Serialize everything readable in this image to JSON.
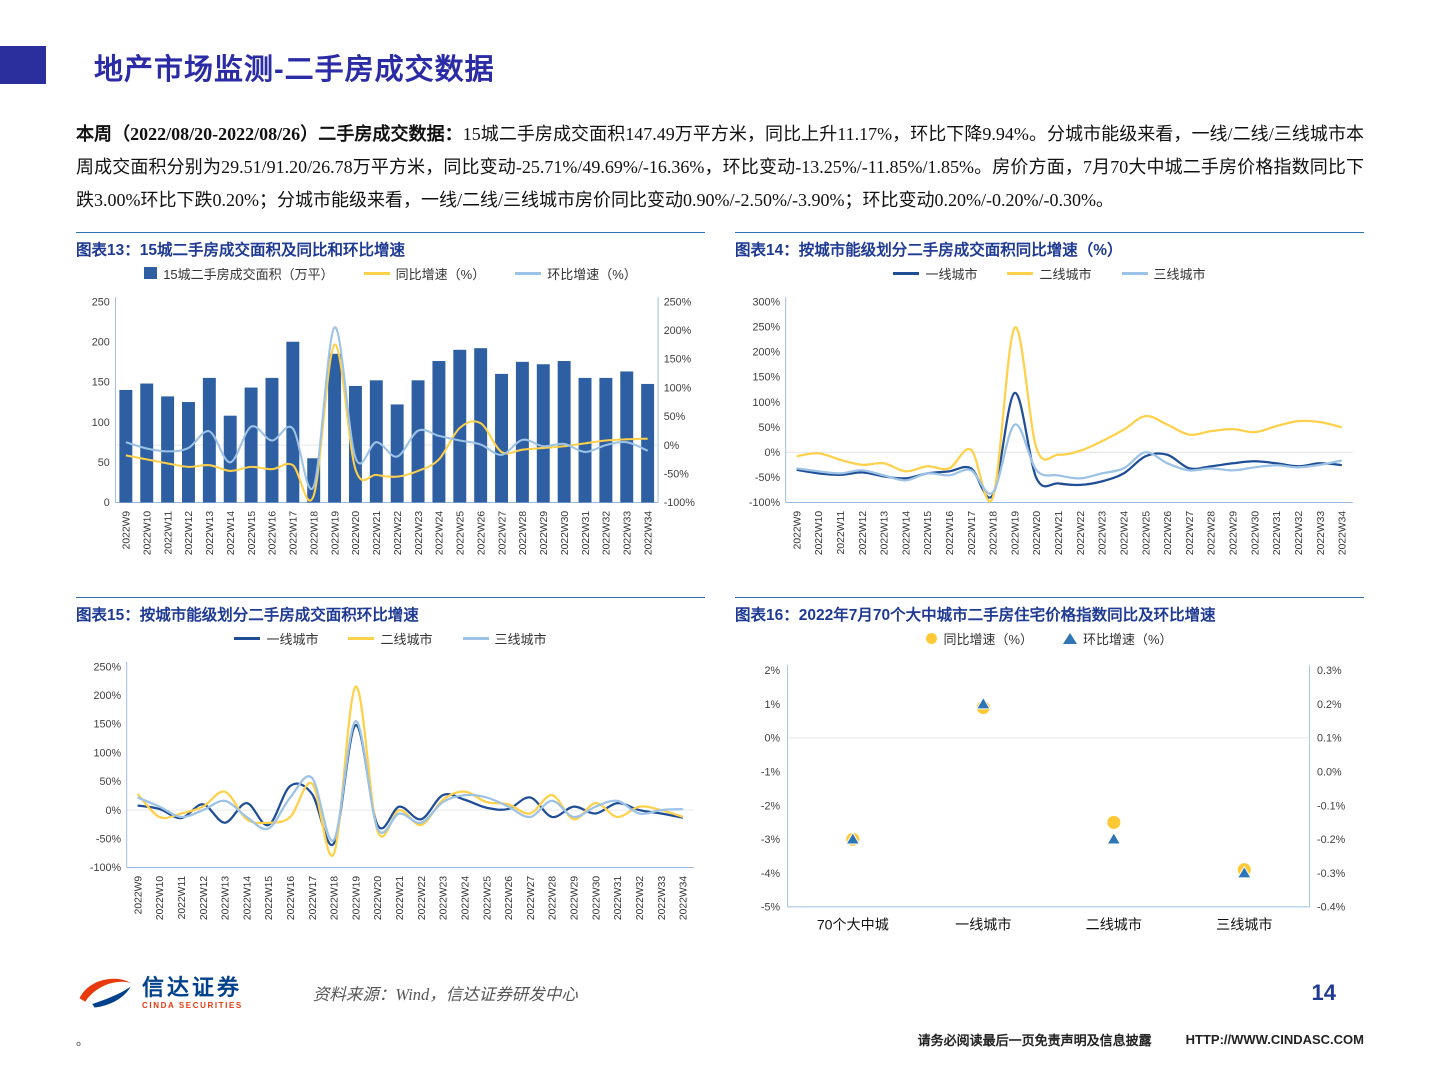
{
  "page": {
    "title": "地产市场监测-二手房成交数据",
    "paragraph_bold": "本周（2022/08/20-2022/08/26）二手房成交数据：",
    "paragraph_text": "15城二手房成交面积147.49万平方米，同比上升11.17%，环比下降9.94%。分城市能级来看，一线/二线/三线城市本周成交面积分别为29.51/91.20/26.78万平方米，同比变动-25.71%/49.69%/-16.36%，环比变动-13.25%/-11.85%/1.85%。房价方面，7月70大中城二手房价格指数同比下跌3.00%环比下跌0.20%；分城市能级来看，一线/二线/三线城市房价同比变动0.90%/-2.50%/-3.90%；环比变动0.20%/-0.20%/-0.30%。",
    "page_number": "14",
    "footer_source": "资料来源：Wind，信达证券研发中心",
    "footer_disclaimer": "请务必阅读最后一页免责声明及信息披露",
    "footer_url": "HTTP://WWW.CINDASC.COM",
    "footer_period": "。",
    "logo": {
      "name": "信达证券",
      "sub": "CINDA SECURITIES"
    }
  },
  "colors": {
    "accent_square": "#2B2F9E",
    "page_title": "#2B2BA6",
    "chart_title": "#1F3A93",
    "rule_line": "#2E74B5",
    "bar_blue": "#2E5FA3",
    "line_navy": "#1F4E96",
    "line_yellow": "#FFD04A",
    "line_lightblue": "#9CC2E5",
    "dot_yellow": "#FFC936",
    "triangle_blue": "#2E75B6",
    "logo_red": "#E8380D",
    "logo_blue": "#00418C"
  },
  "chart_data": [
    {
      "type": "bar-line",
      "title": "图表13：15城二手房成交面积及同比和环比增速",
      "categories": [
        "2022W9",
        "2022W10",
        "2022W11",
        "2022W12",
        "2022W13",
        "2022W14",
        "2022W15",
        "2022W16",
        "2022W17",
        "2022W18",
        "2022W19",
        "2022W20",
        "2022W21",
        "2022W22",
        "2022W23",
        "2022W24",
        "2022W25",
        "2022W26",
        "2022W27",
        "2022W28",
        "2022W29",
        "2022W30",
        "2022W31",
        "2022W32",
        "2022W33",
        "2022W34"
      ],
      "bar_name": "15城二手房成交面积（万平）",
      "bar_color": "#2E5FA3",
      "bar_values": [
        140,
        148,
        132,
        125,
        155,
        108,
        143,
        155,
        200,
        55,
        185,
        145,
        152,
        122,
        152,
        176,
        190,
        192,
        160,
        175,
        172,
        176,
        155,
        155,
        163,
        147.49
      ],
      "ylim_left": [
        0,
        250
      ],
      "ytick_step_left": 50,
      "ylim_right": [
        -100,
        250
      ],
      "ytick_step_right": 50,
      "series": [
        {
          "name": "同比增速（%）",
          "color": "#FFD04A",
          "axis": "right",
          "values": [
            -18,
            -25,
            -32,
            -38,
            -35,
            -45,
            -38,
            -42,
            -35,
            -88,
            175,
            -42,
            -52,
            -55,
            -45,
            -25,
            30,
            38,
            -12,
            -8,
            -5,
            -2,
            3,
            8,
            10,
            11.17
          ]
        },
        {
          "name": "环比增速（%）",
          "color": "#9CC2E5",
          "axis": "right",
          "values": [
            5,
            -6,
            -11,
            -5,
            24,
            -30,
            32,
            8,
            29,
            -72,
            205,
            -22,
            5,
            -20,
            25,
            16,
            8,
            1,
            -17,
            9,
            -2,
            2,
            -12,
            0,
            5,
            -9.94
          ]
        }
      ],
      "legend_position": "top"
    },
    {
      "type": "line",
      "title": "图表14：按城市能级划分二手房成交面积同比增速（%）",
      "categories": [
        "2022W9",
        "2022W10",
        "2022W11",
        "2022W12",
        "2022W13",
        "2022W14",
        "2022W15",
        "2022W16",
        "2022W17",
        "2022W18",
        "2022W19",
        "2022W20",
        "2022W21",
        "2022W22",
        "2022W23",
        "2022W24",
        "2022W25",
        "2022W26",
        "2022W27",
        "2022W28",
        "2022W29",
        "2022W30",
        "2022W31",
        "2022W32",
        "2022W33",
        "2022W34"
      ],
      "ylim": [
        -100,
        300
      ],
      "ytick_step": 50,
      "series": [
        {
          "name": "一线城市",
          "color": "#1F4E96",
          "values": [
            -35,
            -42,
            -45,
            -40,
            -48,
            -52,
            -42,
            -38,
            -32,
            -85,
            118,
            -52,
            -62,
            -65,
            -58,
            -42,
            -8,
            -5,
            -32,
            -28,
            -22,
            -18,
            -22,
            -28,
            -22,
            -25.71
          ]
        },
        {
          "name": "二线城市",
          "color": "#FFD04A",
          "values": [
            -8,
            -2,
            -15,
            -25,
            -22,
            -38,
            -28,
            -32,
            5,
            -90,
            248,
            8,
            -5,
            3,
            22,
            45,
            72,
            55,
            35,
            42,
            46,
            40,
            52,
            62,
            60,
            49.69
          ]
        },
        {
          "name": "三线城市",
          "color": "#9CC2E5",
          "values": [
            -32,
            -38,
            -42,
            -36,
            -46,
            -56,
            -42,
            -46,
            -36,
            -80,
            55,
            -36,
            -46,
            -52,
            -42,
            -32,
            0,
            -22,
            -36,
            -32,
            -36,
            -30,
            -26,
            -30,
            -25,
            -16.36
          ]
        }
      ],
      "legend_position": "top"
    },
    {
      "type": "line",
      "title": "图表15：按城市能级划分二手房成交面积环比增速",
      "categories": [
        "2022W9",
        "2022W10",
        "2022W11",
        "2022W12",
        "2022W13",
        "2022W14",
        "2022W15",
        "2022W16",
        "2022W17",
        "2022W18",
        "2022W19",
        "2022W20",
        "2022W21",
        "2022W22",
        "2022W23",
        "2022W24",
        "2022W25",
        "2022W26",
        "2022W27",
        "2022W28",
        "2022W29",
        "2022W30",
        "2022W31",
        "2022W32",
        "2022W33",
        "2022W34"
      ],
      "ylim": [
        -100,
        250
      ],
      "ytick_step": 50,
      "series": [
        {
          "name": "一线城市",
          "color": "#1F4E96",
          "values": [
            8,
            2,
            -14,
            10,
            -22,
            12,
            -26,
            42,
            28,
            -58,
            148,
            -26,
            6,
            -16,
            26,
            18,
            4,
            2,
            22,
            -12,
            6,
            -6,
            12,
            0,
            -6,
            -13.25
          ]
        },
        {
          "name": "二线城市",
          "color": "#FFD04A",
          "values": [
            28,
            -12,
            -6,
            6,
            32,
            -16,
            -22,
            -12,
            46,
            -76,
            215,
            -36,
            0,
            -26,
            18,
            32,
            14,
            10,
            -6,
            26,
            -16,
            12,
            -12,
            6,
            0,
            -11.85
          ]
        },
        {
          "name": "三线城市",
          "color": "#9CC2E5",
          "values": [
            22,
            6,
            -12,
            0,
            16,
            -12,
            -32,
            22,
            56,
            -52,
            155,
            -32,
            -6,
            -22,
            14,
            26,
            22,
            6,
            -12,
            16,
            -12,
            6,
            16,
            -6,
            0,
            1.85
          ]
        }
      ],
      "legend_position": "top"
    },
    {
      "type": "scatter",
      "title": "图表16：2022年7月70个大中城市二手房住宅价格指数同比及环比增速",
      "categories": [
        "70个大中城",
        "一线城市",
        "二线城市",
        "三线城市"
      ],
      "ylim_left": [
        -5,
        2
      ],
      "ytick_step_left": 1,
      "ylim_right": [
        -0.4,
        0.3
      ],
      "ytick_step_right": 0.1,
      "series": [
        {
          "name": "同比增速（%）",
          "marker": "circle",
          "color": "#FFC936",
          "axis": "left",
          "values": [
            -3.0,
            0.9,
            -2.5,
            -3.9
          ]
        },
        {
          "name": "环比增速（%）",
          "marker": "triangle",
          "color": "#2E75B6",
          "axis": "right",
          "values": [
            -0.2,
            0.2,
            -0.2,
            -0.3
          ]
        }
      ],
      "legend_position": "top"
    }
  ]
}
